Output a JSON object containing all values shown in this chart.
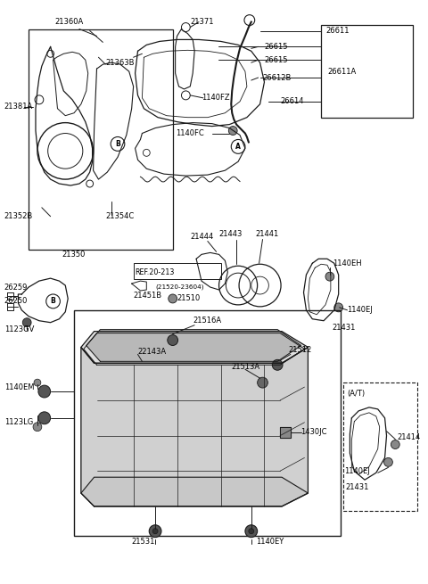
{
  "fig_width": 4.8,
  "fig_height": 6.55,
  "dpi": 100,
  "bg_color": "#ffffff",
  "line_color": "#1a1a1a",
  "label_fs": 6.0,
  "small_fs": 5.5,
  "xlim": [
    0,
    480
  ],
  "ylim": [
    0,
    655
  ]
}
